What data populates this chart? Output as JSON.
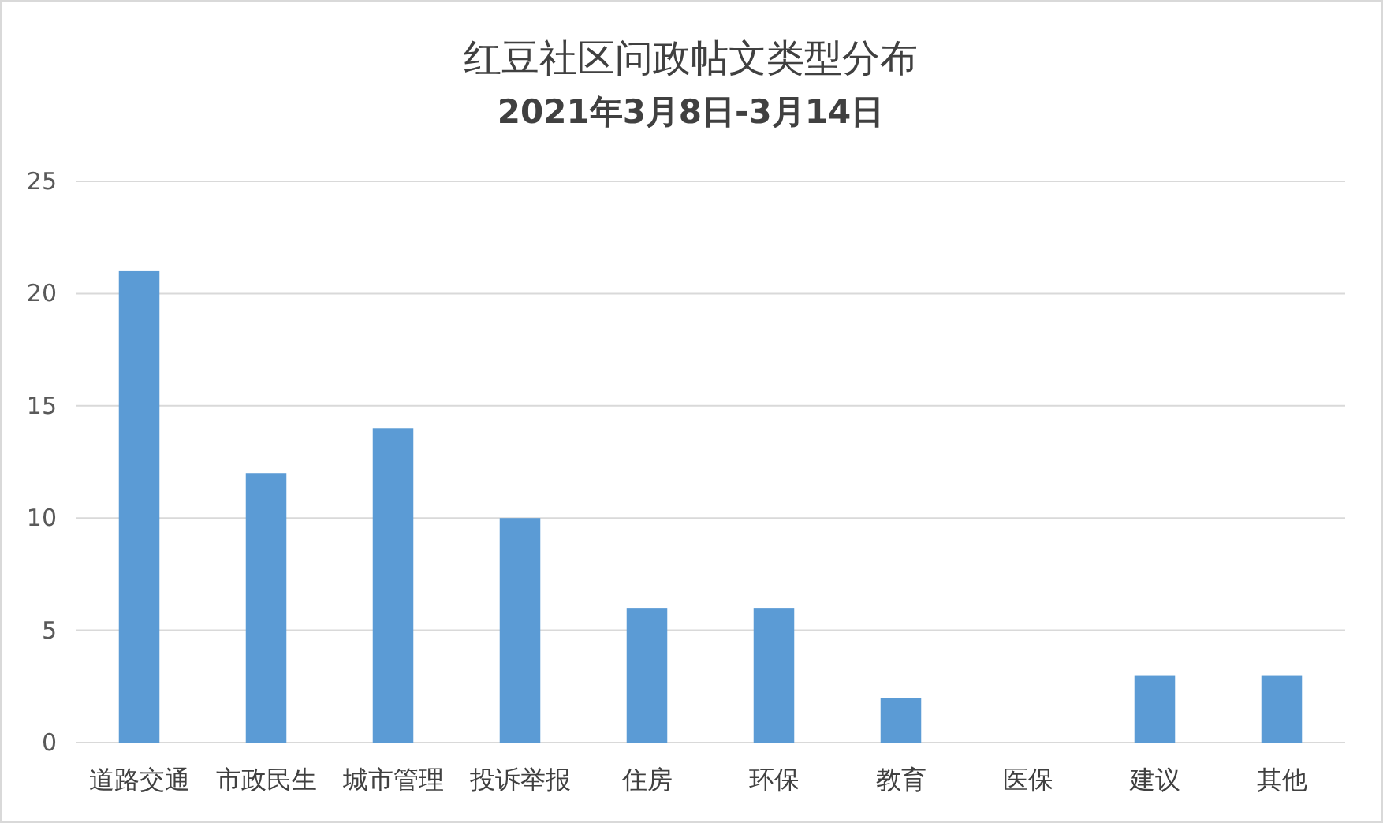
{
  "chart_data": {
    "type": "bar",
    "title": "红豆社区问政帖文类型分布",
    "subtitle": "2021年3月8日-3月14日",
    "categories": [
      "道路交通",
      "市政民生",
      "城市管理",
      "投诉举报",
      "住房",
      "环保",
      "教育",
      "医保",
      "建议",
      "其他"
    ],
    "values": [
      21,
      12,
      14,
      10,
      6,
      6,
      2,
      0,
      3,
      3
    ],
    "color": "#5b9bd5",
    "ylim": [
      0,
      25
    ],
    "yticks": [
      0,
      5,
      10,
      15,
      20,
      25
    ],
    "grid": "y"
  }
}
